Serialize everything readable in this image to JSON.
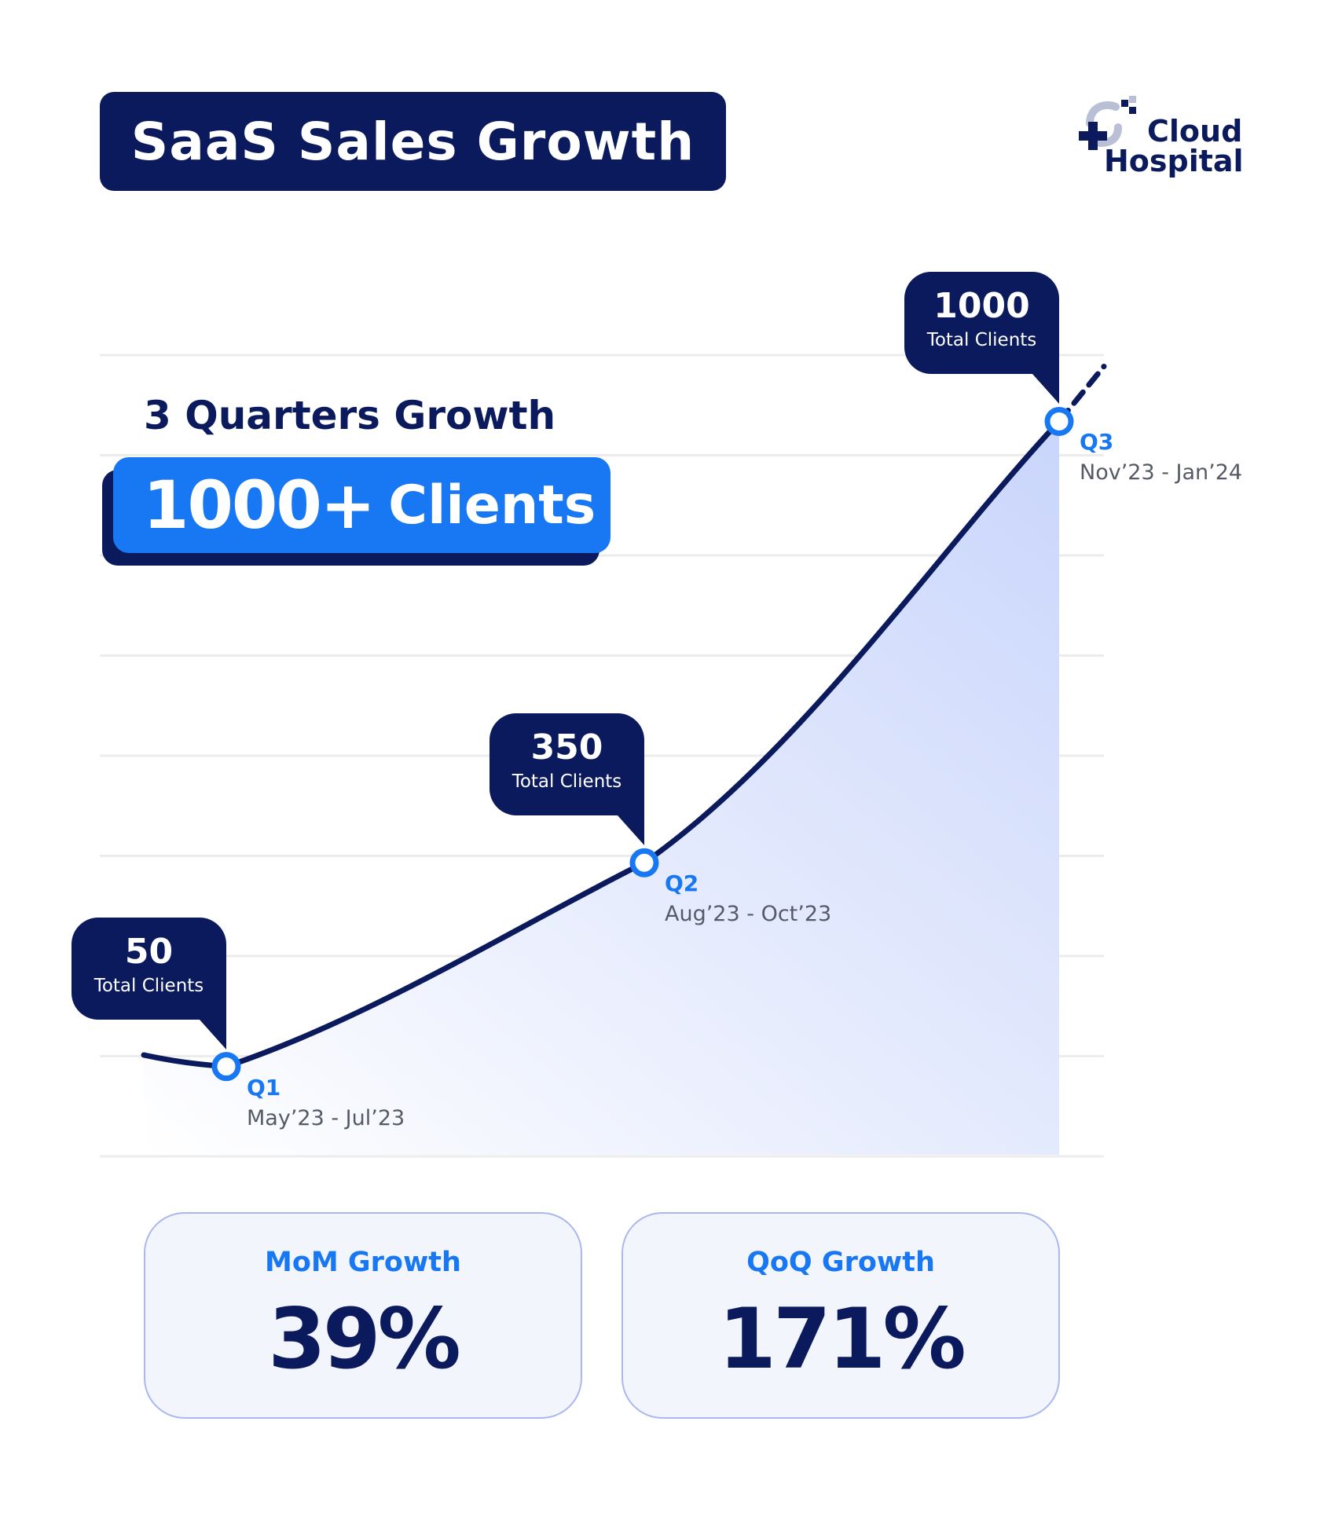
{
  "header": {
    "title": "SaaS Sales Growth",
    "brand_line1": "Cloud",
    "brand_line2": "Hospital"
  },
  "headline": {
    "subtitle": "3 Quarters Growth",
    "clients_number": "1000+",
    "clients_word": "Clients"
  },
  "chart_data": {
    "type": "area",
    "x": [
      "Q1",
      "Q2",
      "Q3"
    ],
    "series": [
      {
        "values": [
          50,
          350,
          1000
        ]
      }
    ],
    "points": [
      {
        "quarter": "Q1",
        "range": "May’23 - Jul’23",
        "value": 50,
        "value_label": "50",
        "caption": "Total Clients"
      },
      {
        "quarter": "Q2",
        "range": "Aug’23 - Oct’23",
        "value": 350,
        "value_label": "350",
        "caption": "Total Clients"
      },
      {
        "quarter": "Q3",
        "range": "Nov’23 - Jan’24",
        "value": 1000,
        "value_label": "1000",
        "caption": "Total Clients"
      }
    ],
    "ylim": [
      -80,
      1100
    ],
    "grid": true
  },
  "stats": [
    {
      "label": "MoM Growth",
      "value": "39%"
    },
    {
      "label": "QoQ Growth",
      "value": "171%"
    }
  ],
  "colors": {
    "navy": "#0a1a5c",
    "blue": "#1877f2",
    "grid": "#ececec"
  }
}
